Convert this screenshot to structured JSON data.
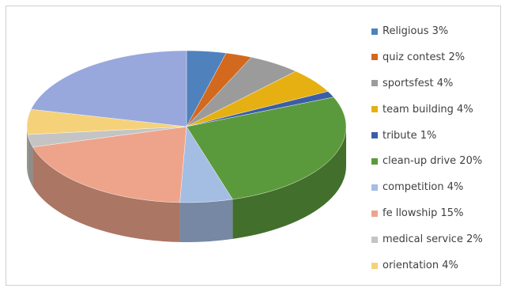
{
  "chart_data": {
    "type": "pie",
    "style": "3d",
    "title": "",
    "slices": [
      {
        "label": "Religious",
        "value": 3,
        "color": "#4f81bd"
      },
      {
        "label": "quiz contest",
        "value": 2,
        "color": "#d2691e"
      },
      {
        "label": "sportsfest",
        "value": 4,
        "color": "#9b9b9b"
      },
      {
        "label": "team building",
        "value": 4,
        "color": "#e6b012"
      },
      {
        "label": "tribute",
        "value": 1,
        "color": "#3a5fa6"
      },
      {
        "label": "clean-up drive",
        "value": 20,
        "color": "#5b9a3c"
      },
      {
        "label": "competition",
        "value": 4,
        "color": "#a4bde3"
      },
      {
        "label": "fellowship",
        "value": 15,
        "color": "#eea48a"
      },
      {
        "label": "medical service",
        "value": 2,
        "color": "#c4c4c4"
      },
      {
        "label": "orientation",
        "value": 4,
        "color": "#f5d27a"
      },
      {
        "label": "",
        "value": 16,
        "color": "#98a8dc"
      }
    ],
    "legend": {
      "placement": "right",
      "entries": [
        "Religious 3%",
        "quiz contest 2%",
        "sportsfest 4%",
        "team building 4%",
        "tribute 1%",
        "clean-up drive 20%",
        "competition 4%",
        "fe llowship 15%",
        "medical service 2%",
        "orientation 4%"
      ]
    }
  }
}
